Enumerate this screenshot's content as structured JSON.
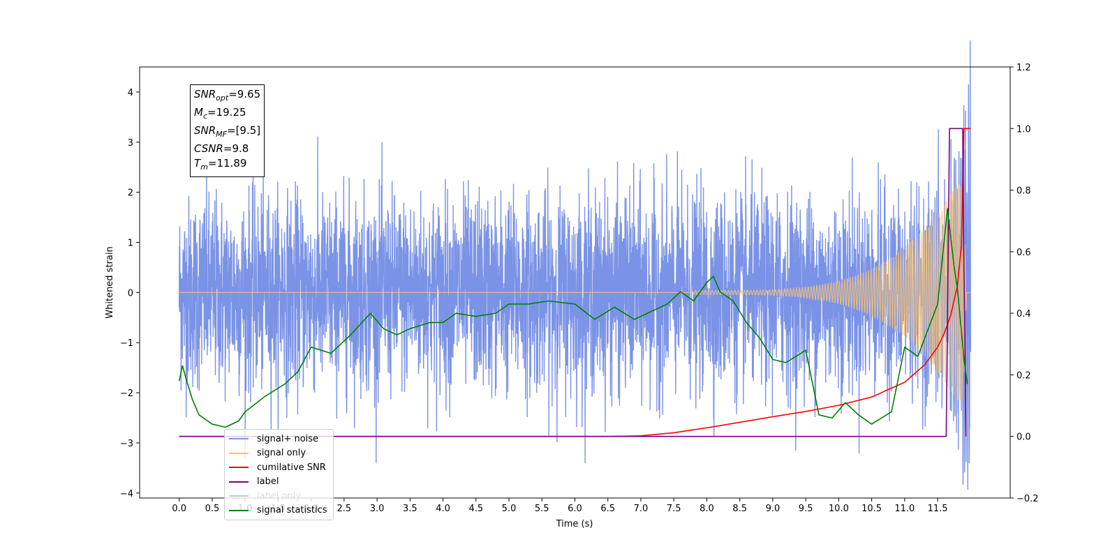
{
  "chart_data": {
    "type": "line",
    "xlabel": "Time (s)",
    "ylabel": "Whitened strain",
    "xlim": [
      -0.6,
      12.6
    ],
    "ylim": [
      -4.1,
      4.5
    ],
    "y2lim": [
      -0.2,
      1.2
    ],
    "xticks": [
      "0.0",
      "0.5",
      "1.0",
      "1.5",
      "2.0",
      "2.5",
      "3.0",
      "3.5",
      "4.0",
      "4.5",
      "5.0",
      "5.5",
      "6.0",
      "6.5",
      "7.0",
      "7.5",
      "8.0",
      "8.5",
      "9.0",
      "9.5",
      "10.0",
      "10.5",
      "11.0",
      "11.5"
    ],
    "yticks": [
      "−4",
      "−3",
      "−2",
      "−1",
      "0",
      "1",
      "2",
      "3",
      "4"
    ],
    "y2ticks": [
      "−0.2",
      "0.0",
      "0.2",
      "0.4",
      "0.6",
      "0.8",
      "1.0",
      "1.2"
    ],
    "grid": false,
    "legend_position": "lower-left",
    "series": [
      {
        "name": "signal+ noise",
        "axis": "left",
        "color": "#7b93e6",
        "description": "whitened noise, roughly ±2 with spikes to ±4, t = 0–12"
      },
      {
        "name": "signal only",
        "axis": "left",
        "color": "#f5c27a",
        "description": "chirp, ~0 until 8 s, growing to ±2.5 near 11.85 s"
      },
      {
        "name": "cumilative SNR",
        "axis": "right",
        "color": "#ff0000",
        "x": [
          0,
          6.5,
          7.0,
          7.5,
          8.0,
          8.5,
          9.0,
          9.5,
          10.0,
          10.5,
          11.0,
          11.3,
          11.5,
          11.6,
          11.7,
          11.8,
          11.86,
          11.9,
          12.0
        ],
        "values": [
          0,
          0,
          0.002,
          0.012,
          0.028,
          0.046,
          0.064,
          0.081,
          0.101,
          0.128,
          0.176,
          0.232,
          0.29,
          0.335,
          0.395,
          0.49,
          0.62,
          1.0,
          1.0
        ]
      },
      {
        "name": "label",
        "axis": "right",
        "color": "#7b007b",
        "x": [
          0,
          11.63,
          11.68,
          11.88,
          11.89,
          11.92,
          11.93
        ],
        "values": [
          0,
          0,
          1.0,
          1.0,
          0.7,
          0.2,
          0
        ]
      },
      {
        "name": "label only",
        "axis": "right",
        "color": "#c8c8c8"
      },
      {
        "name": "signal statistics",
        "axis": "right",
        "color": "#008000",
        "x": [
          0,
          0.05,
          0.1,
          0.2,
          0.3,
          0.5,
          0.7,
          0.9,
          1.0,
          1.3,
          1.6,
          1.8,
          2.0,
          2.3,
          2.6,
          2.9,
          3.1,
          3.3,
          3.5,
          3.8,
          4.0,
          4.2,
          4.5,
          4.8,
          5.0,
          5.3,
          5.6,
          6.0,
          6.3,
          6.6,
          6.9,
          7.1,
          7.4,
          7.6,
          7.8,
          8.0,
          8.1,
          8.2,
          8.4,
          8.6,
          8.8,
          9.0,
          9.2,
          9.5,
          9.7,
          9.9,
          10.1,
          10.3,
          10.5,
          10.8,
          11.0,
          11.2,
          11.5,
          11.65,
          11.75,
          11.8,
          11.9,
          11.95
        ],
        "values": [
          0.18,
          0.23,
          0.19,
          0.12,
          0.07,
          0.04,
          0.03,
          0.05,
          0.08,
          0.13,
          0.17,
          0.21,
          0.29,
          0.27,
          0.33,
          0.4,
          0.35,
          0.33,
          0.35,
          0.37,
          0.37,
          0.4,
          0.39,
          0.4,
          0.43,
          0.43,
          0.44,
          0.43,
          0.38,
          0.42,
          0.38,
          0.4,
          0.43,
          0.47,
          0.44,
          0.5,
          0.52,
          0.47,
          0.44,
          0.37,
          0.32,
          0.25,
          0.24,
          0.28,
          0.07,
          0.06,
          0.11,
          0.07,
          0.04,
          0.08,
          0.29,
          0.26,
          0.43,
          0.74,
          0.55,
          0.48,
          0.25,
          0.17
        ]
      }
    ],
    "annotation": [
      {
        "name": "SNR",
        "sub": "opt",
        "value": "=9.65"
      },
      {
        "name": "M",
        "sub": "c",
        "value": "=19.25"
      },
      {
        "name": "SNR",
        "sub": "MF",
        "value": "=[9.5]"
      },
      {
        "name": "CSNR",
        "sub": "",
        "value": "=9.8"
      },
      {
        "name": "T",
        "sub": "m",
        "value": "=11.89"
      }
    ]
  }
}
